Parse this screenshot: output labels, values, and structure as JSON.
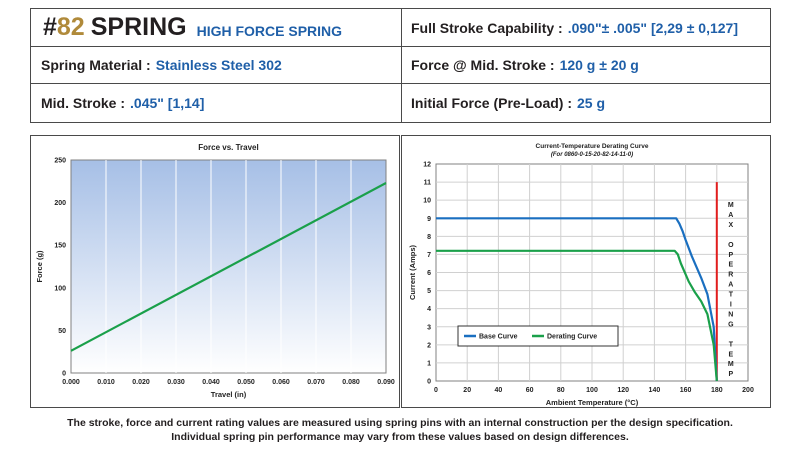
{
  "specs": {
    "title_hash": "#",
    "title_num": "82",
    "title_main": "SPRING",
    "title_sub": "HIGH FORCE SPRING",
    "full_stroke_label": "Full Stroke Capability :",
    "full_stroke_value": ".090\"± .005\" [2,29 ± 0,127]",
    "material_label": "Spring Material :",
    "material_value": "Stainless Steel 302",
    "force_mid_label": "Force @ Mid. Stroke :",
    "force_mid_value": "120 g ± 20 g",
    "mid_stroke_label": "Mid. Stroke :",
    "mid_stroke_value": ".045\" [1,14]",
    "initial_force_label": "Initial Force (Pre-Load) :",
    "initial_force_value": "25 g"
  },
  "footer": {
    "line1": "The stroke, force and current rating values are measured using spring pins with an internal construction per the design specification.",
    "line2": "Individual spring pin performance may vary from these values based on design differences."
  },
  "chart_data": [
    {
      "type": "line",
      "title": "Force vs. Travel",
      "xlabel": "Travel (in)",
      "ylabel": "Force (g)",
      "xlim": [
        0,
        0.09
      ],
      "ylim": [
        0,
        250
      ],
      "x_ticks": [
        "0.000",
        "0.010",
        "0.020",
        "0.030",
        "0.040",
        "0.050",
        "0.060",
        "0.070",
        "0.080",
        "0.090"
      ],
      "y_ticks": [
        "0",
        "50",
        "100",
        "150",
        "200",
        "250"
      ],
      "grid": "vertical",
      "series": [
        {
          "name": "Force",
          "color": "#1aa04a",
          "x": [
            0,
            0.09
          ],
          "y": [
            26,
            223
          ]
        }
      ]
    },
    {
      "type": "line",
      "title": "Current-Temperature Derating Curve",
      "subtitle": "(For 0860-0-15-20-82-14-11-0)",
      "xlabel": "Ambient Temperature (°C)",
      "ylabel": "Current (Amps)",
      "xlim": [
        0,
        200
      ],
      "ylim": [
        0,
        12
      ],
      "x_ticks": [
        "0",
        "20",
        "40",
        "60",
        "80",
        "100",
        "120",
        "140",
        "160",
        "180",
        "200"
      ],
      "y_ticks": [
        "0",
        "1",
        "2",
        "3",
        "4",
        "5",
        "6",
        "7",
        "8",
        "9",
        "10",
        "11",
        "12"
      ],
      "grid": "both",
      "series": [
        {
          "name": "Base Curve",
          "color": "#1a6fc0",
          "x": [
            0,
            154,
            156,
            158,
            160,
            164,
            170,
            174,
            178,
            180
          ],
          "y": [
            9,
            9,
            8.7,
            8.3,
            7.8,
            6.9,
            5.7,
            4.8,
            3.0,
            0
          ]
        },
        {
          "name": "Derating Curve",
          "color": "#1aa04a",
          "x": [
            0,
            153,
            155,
            157,
            160,
            162,
            166,
            170,
            174,
            178,
            180
          ],
          "y": [
            7.2,
            7.2,
            7.0,
            6.5,
            5.9,
            5.5,
            4.9,
            4.4,
            3.7,
            2.0,
            0
          ]
        }
      ],
      "limit_line": {
        "x": 180,
        "color": "#e11d1d"
      },
      "vertical_annotation": [
        "M",
        "A",
        "X",
        "",
        "O",
        "P",
        "E",
        "R",
        "A",
        "T",
        "I",
        "N",
        "G",
        "",
        "T",
        "E",
        "M",
        "P"
      ],
      "legend": "lower-left"
    }
  ]
}
